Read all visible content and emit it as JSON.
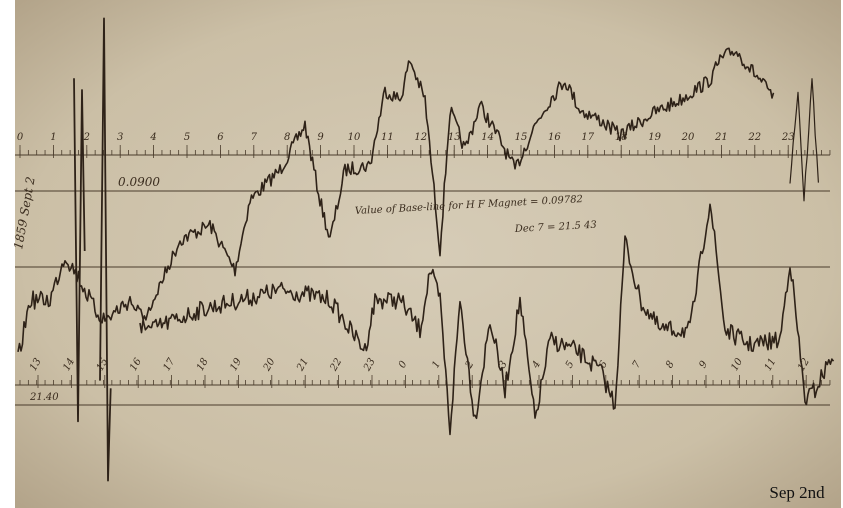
{
  "photo": {
    "caption": "Sep 2nd",
    "annotations": {
      "side_note": "1859 Sept 2",
      "upper_baseline": "0.0900",
      "lower_baseline": "21.40",
      "base_line_note": "Value of Base-line for H F Magnet = 0.09782",
      "base_line_note_2": "Dec 7 = 21.5 43"
    },
    "upper_scale": [
      "0",
      "1",
      "2",
      "3",
      "4",
      "5",
      "6",
      "7",
      "8",
      "9",
      "10",
      "11",
      "12",
      "13",
      "14",
      "15",
      "16",
      "17",
      "18",
      "19",
      "20",
      "21",
      "22",
      "23"
    ],
    "lower_scale": [
      "13",
      "14",
      "15",
      "16",
      "17",
      "18",
      "19",
      "20",
      "21",
      "22",
      "23",
      "0",
      "1",
      "2",
      "3",
      "4",
      "5",
      "6",
      "7",
      "8",
      "9",
      "10",
      "11",
      "12"
    ]
  }
}
